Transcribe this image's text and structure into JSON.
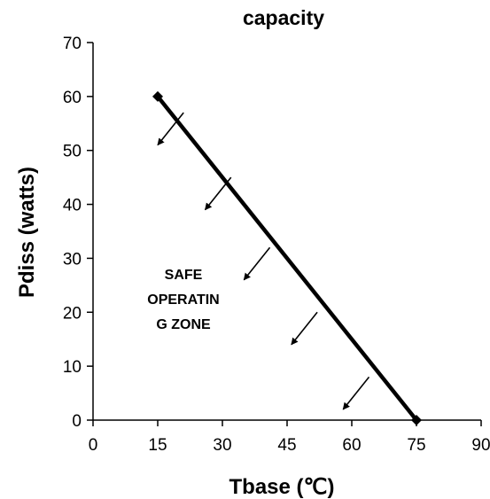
{
  "chart_data": {
    "type": "line",
    "title": "capacity",
    "xlabel": "Tbase (℃)",
    "ylabel": "Pdiss (watts)",
    "xlim": [
      0,
      90
    ],
    "ylim": [
      0,
      70
    ],
    "x_ticks": [
      "0",
      "15",
      "30",
      "45",
      "60",
      "75",
      "90"
    ],
    "y_ticks": [
      "0",
      "10",
      "20",
      "30",
      "40",
      "50",
      "60",
      "70"
    ],
    "grid": false,
    "series": [
      {
        "x": [
          15,
          75
        ],
        "y": [
          60,
          0
        ]
      }
    ],
    "annotations": {
      "zone_label": [
        "SAFE",
        "OPERATIN",
        "G ZONE"
      ],
      "arrows": [
        {
          "from": [
            21,
            57
          ],
          "to": [
            15,
            51
          ]
        },
        {
          "from": [
            32,
            45
          ],
          "to": [
            26,
            39
          ]
        },
        {
          "from": [
            41,
            32
          ],
          "to": [
            35,
            26
          ]
        },
        {
          "from": [
            52,
            20
          ],
          "to": [
            46,
            14
          ]
        },
        {
          "from": [
            64,
            8
          ],
          "to": [
            58,
            2
          ]
        }
      ]
    },
    "colors": {
      "line": "#000000",
      "axis": "#000000",
      "background": "#ffffff"
    }
  }
}
